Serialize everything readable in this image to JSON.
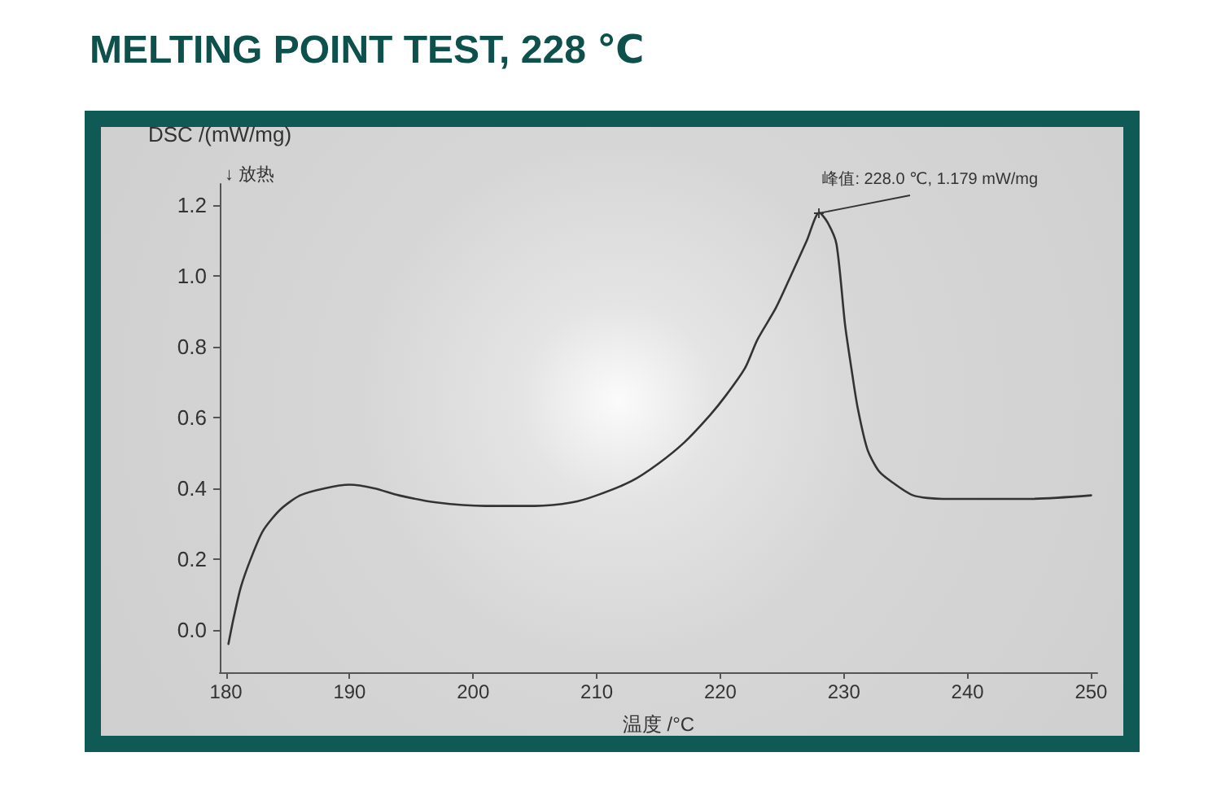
{
  "chart_data": {
    "type": "line",
    "title": "MELTING POINT TEST, 228 ℃",
    "xlabel": "温度 /°C",
    "ylabel": "DSC /(mW/mg)",
    "annotations": [
      "↓ 放热",
      {
        "text": "峰值: 228.0 ℃, 1.179 mW/mg",
        "x": 228,
        "y": 1.179
      }
    ],
    "x": [
      180.2,
      180.6,
      181.2,
      182,
      183,
      184.4,
      186,
      188,
      190,
      192,
      194,
      197,
      201,
      205,
      208,
      210,
      212.8,
      215,
      217.1,
      219,
      220.4,
      222,
      223,
      224.5,
      225.7,
      227,
      228,
      228.7,
      229.4,
      230.1,
      230.6,
      231.1,
      231.9,
      232.8,
      233.8,
      235.6,
      238,
      240,
      245,
      250
    ],
    "series": [
      {
        "color": "#333333",
        "values": [
          -0.04,
          0.03,
          0.12,
          0.2,
          0.28,
          0.34,
          0.38,
          0.4,
          0.41,
          0.4,
          0.38,
          0.36,
          0.35,
          0.35,
          0.36,
          0.38,
          0.42,
          0.47,
          0.53,
          0.6,
          0.66,
          0.74,
          0.82,
          0.91,
          1.0,
          1.1,
          1.179,
          1.15,
          1.09,
          0.86,
          0.74,
          0.63,
          0.51,
          0.45,
          0.42,
          0.38,
          0.37,
          0.37,
          0.37,
          0.38
        ]
      }
    ],
    "xlim": [
      179.5,
      250.5
    ],
    "ylim": [
      -0.12,
      1.26
    ],
    "xticks": [
      180,
      190,
      200,
      210,
      220,
      230,
      240,
      250
    ],
    "yticks": [
      {
        "value": 0,
        "label": "0.0"
      },
      0.2,
      0.4,
      0.6,
      0.8,
      {
        "value": 1,
        "label": "1.0"
      },
      1.2
    ],
    "grid": false,
    "marker": "none",
    "line_style": "solid"
  }
}
